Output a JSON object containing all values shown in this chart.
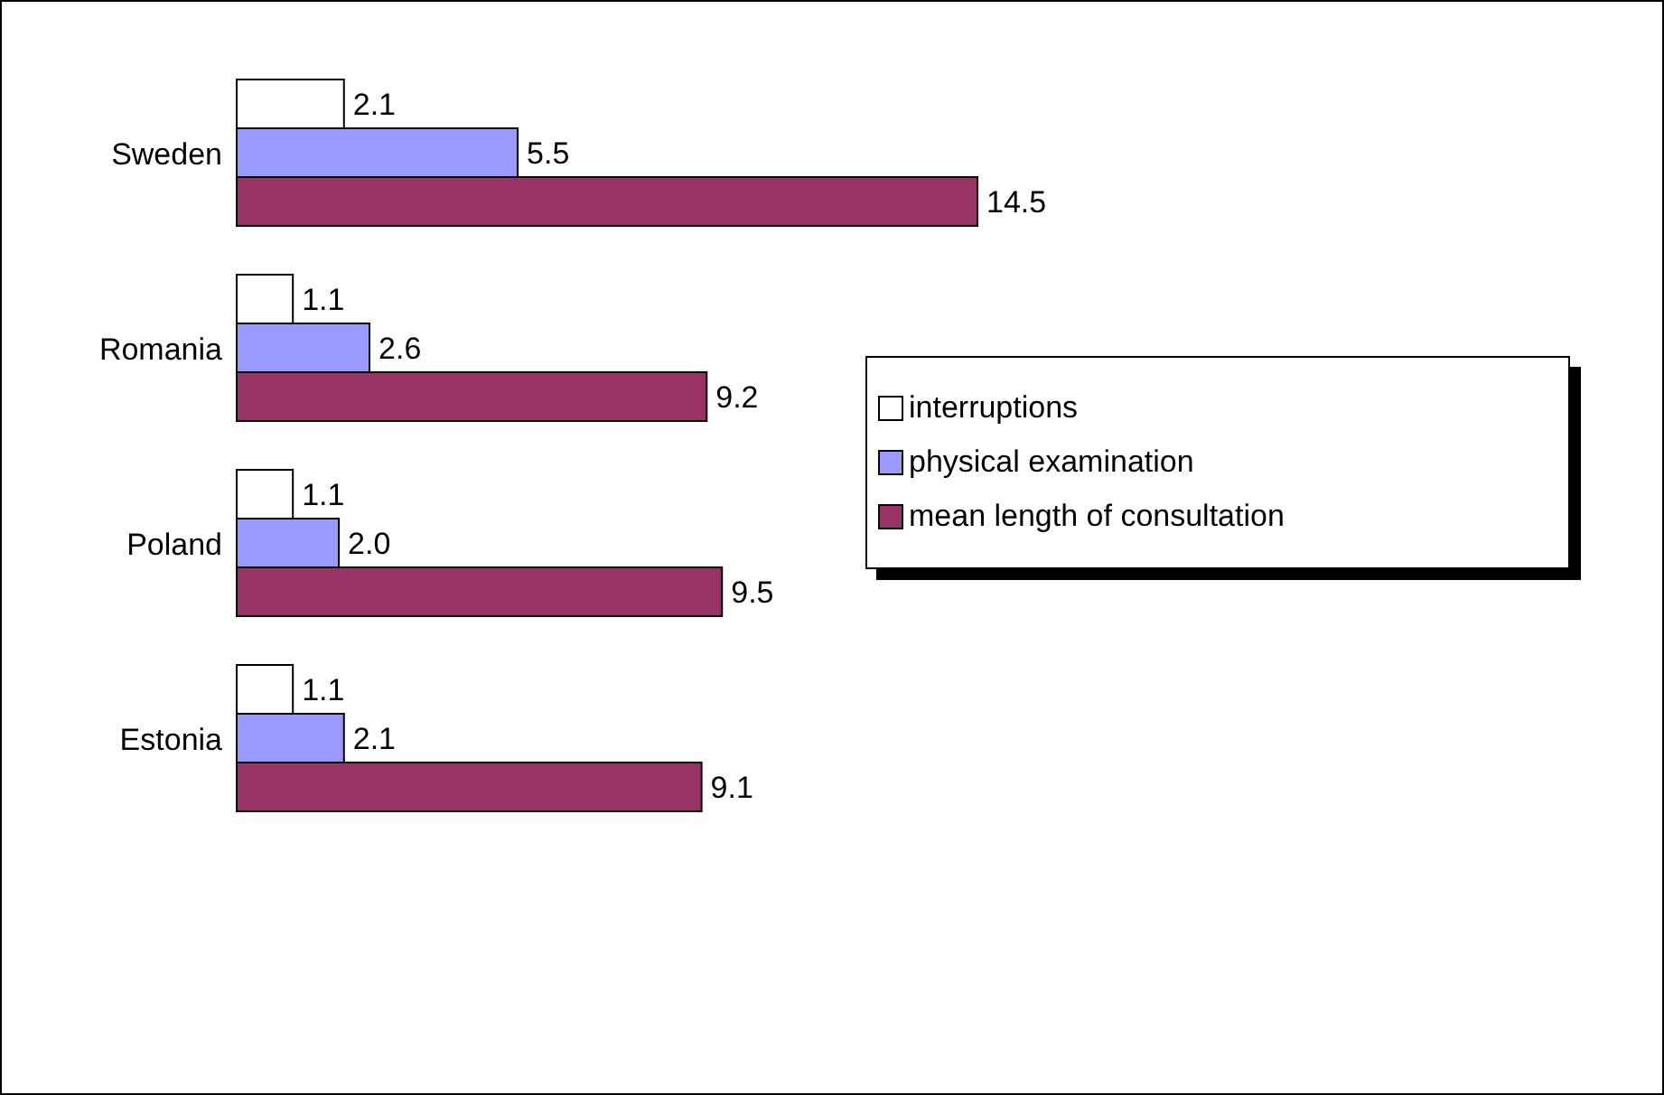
{
  "chart_data": {
    "type": "bar",
    "orientation": "horizontal",
    "categories": [
      "Sweden",
      "Romania",
      "Poland",
      "Estonia"
    ],
    "legend": "right",
    "series": [
      {
        "name": "interruptions",
        "color": "#ffffff",
        "values": [
          2.1,
          1.1,
          1.1,
          1.1
        ],
        "value_labels": [
          "2.1",
          "1.1",
          "1.1",
          "1.1"
        ]
      },
      {
        "name": "physical examination",
        "color": "#9999ff",
        "values": [
          5.5,
          2.6,
          2.0,
          2.1
        ],
        "value_labels": [
          "5.5",
          "2.6",
          "2.0",
          "2.1"
        ]
      },
      {
        "name": "mean length of consultation",
        "color": "#993366",
        "values": [
          14.5,
          9.2,
          9.5,
          9.1
        ],
        "value_labels": [
          "14.5",
          "9.2",
          "9.5",
          "9.1"
        ]
      }
    ]
  }
}
